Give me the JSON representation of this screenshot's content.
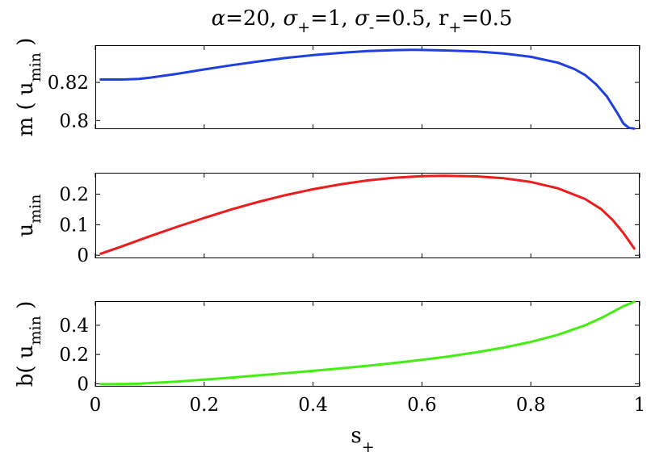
{
  "title": {
    "alpha_sym": "α",
    "alpha_val": "=20, ",
    "sigma_sym": "σ",
    "sigma_plus_sub": "+",
    "sigma_plus_val": "=1, ",
    "sigma_minus_sub": "-",
    "sigma_minus_val": "=0.5, ",
    "r": "r",
    "r_sub": "+",
    "r_val": "=0.5"
  },
  "xlabel": {
    "main": "s",
    "sub": "+"
  },
  "x_ticks": [
    "0",
    "0.2",
    "0.4",
    "0.6",
    "0.8",
    "1"
  ],
  "chart_data": [
    {
      "type": "line",
      "ylabel": "m ( u_min )",
      "ylabel_parts": {
        "pre": "m ( u",
        "sub": "min",
        "post": " )"
      },
      "xlim": [
        0,
        1
      ],
      "ylim": [
        0.7955,
        0.8395
      ],
      "yticks": [
        0.8,
        0.82
      ],
      "ytick_labels": [
        "0.8",
        "0.82"
      ],
      "color": "#1f3fe0",
      "x": [
        0.01,
        0.05,
        0.08,
        0.1,
        0.15,
        0.2,
        0.25,
        0.3,
        0.35,
        0.4,
        0.45,
        0.5,
        0.55,
        0.58,
        0.6,
        0.65,
        0.7,
        0.75,
        0.8,
        0.85,
        0.88,
        0.9,
        0.92,
        0.94,
        0.96,
        0.97,
        0.98,
        0.99
      ],
      "y": [
        0.8215,
        0.8215,
        0.8218,
        0.8225,
        0.8245,
        0.8268,
        0.829,
        0.831,
        0.8328,
        0.8343,
        0.8355,
        0.8364,
        0.8369,
        0.8371,
        0.837,
        0.8367,
        0.8362,
        0.8352,
        0.8334,
        0.8303,
        0.827,
        0.8238,
        0.819,
        0.8125,
        0.8035,
        0.7985,
        0.7962,
        0.7958
      ]
    },
    {
      "type": "line",
      "ylabel": "u_min",
      "ylabel_parts": {
        "pre": "u",
        "sub": "min",
        "post": ""
      },
      "xlim": [
        0,
        1
      ],
      "ylim": [
        -0.01,
        0.27
      ],
      "yticks": [
        0,
        0.1,
        0.2
      ],
      "ytick_labels": [
        "0",
        "0.1",
        "0.2"
      ],
      "color": "#ee1c1c",
      "x": [
        0.01,
        0.05,
        0.1,
        0.15,
        0.2,
        0.25,
        0.3,
        0.35,
        0.4,
        0.45,
        0.5,
        0.55,
        0.6,
        0.64,
        0.7,
        0.75,
        0.8,
        0.85,
        0.9,
        0.93,
        0.95,
        0.97,
        0.99
      ],
      "y": [
        0.005,
        0.03,
        0.062,
        0.093,
        0.122,
        0.15,
        0.175,
        0.197,
        0.216,
        0.232,
        0.245,
        0.254,
        0.259,
        0.26,
        0.258,
        0.252,
        0.24,
        0.219,
        0.184,
        0.15,
        0.116,
        0.073,
        0.022
      ]
    },
    {
      "type": "line",
      "ylabel": "b( u_min )",
      "ylabel_parts": {
        "pre": "b( u",
        "sub": "min",
        "post": " )"
      },
      "xlim": [
        0,
        1
      ],
      "ylim": [
        -0.02,
        0.565
      ],
      "yticks": [
        0,
        0.2,
        0.4
      ],
      "ytick_labels": [
        "0",
        "0.2",
        "0.4"
      ],
      "color": "#44ee11",
      "x": [
        0.01,
        0.05,
        0.08,
        0.1,
        0.15,
        0.2,
        0.25,
        0.3,
        0.35,
        0.4,
        0.45,
        0.5,
        0.55,
        0.6,
        0.65,
        0.7,
        0.75,
        0.8,
        0.85,
        0.9,
        0.93,
        0.95,
        0.97,
        0.99
      ],
      "y": [
        -0.003,
        -0.002,
        0.0,
        0.005,
        0.015,
        0.028,
        0.042,
        0.057,
        0.072,
        0.088,
        0.105,
        0.123,
        0.142,
        0.163,
        0.187,
        0.215,
        0.247,
        0.286,
        0.335,
        0.4,
        0.45,
        0.49,
        0.53,
        0.56
      ]
    }
  ]
}
